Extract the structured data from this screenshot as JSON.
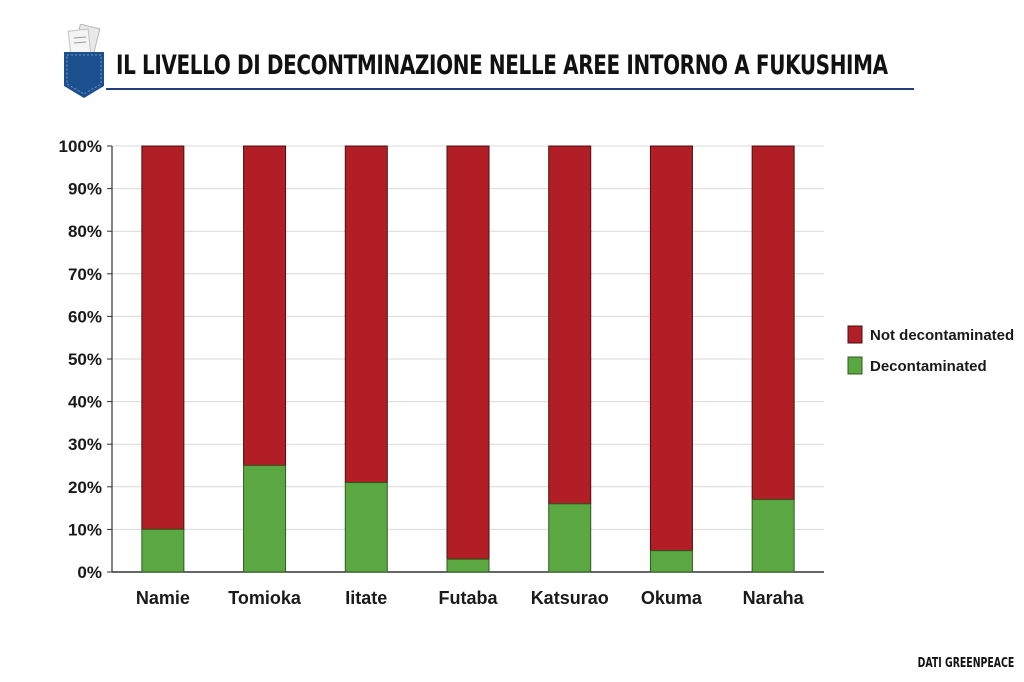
{
  "header": {
    "title": "IL LIVELLO DI DECONTMINAZIONE NELLE AREE INTORNO A FUKUSHIMA"
  },
  "source": "DATI GREENPEACE",
  "colors": {
    "not_decontaminated": "#b21e25",
    "decontaminated": "#5ba843",
    "title_rule": "#243f7a",
    "logo": "#1c4f8e"
  },
  "icons": {
    "logo": "pocket-documents-icon"
  },
  "chart_data": {
    "type": "bar",
    "stacked": true,
    "categories": [
      "Namie",
      "Tomioka",
      "Iitate",
      "Futaba",
      "Katsurao",
      "Okuma",
      "Naraha"
    ],
    "series": [
      {
        "name": "Decontaminated",
        "values": [
          10,
          25,
          21,
          3,
          16,
          5,
          17
        ]
      },
      {
        "name": "Not decontaminated",
        "values": [
          90,
          75,
          79,
          97,
          84,
          95,
          83
        ]
      }
    ],
    "yticks": [
      "0%",
      "10%",
      "20%",
      "30%",
      "40%",
      "50%",
      "60%",
      "70%",
      "80%",
      "90%",
      "100%"
    ],
    "ylim": [
      0,
      100
    ],
    "grid": true,
    "legend": {
      "position": "right",
      "entries": [
        "Not decontaminated",
        "Decontaminated"
      ]
    }
  }
}
